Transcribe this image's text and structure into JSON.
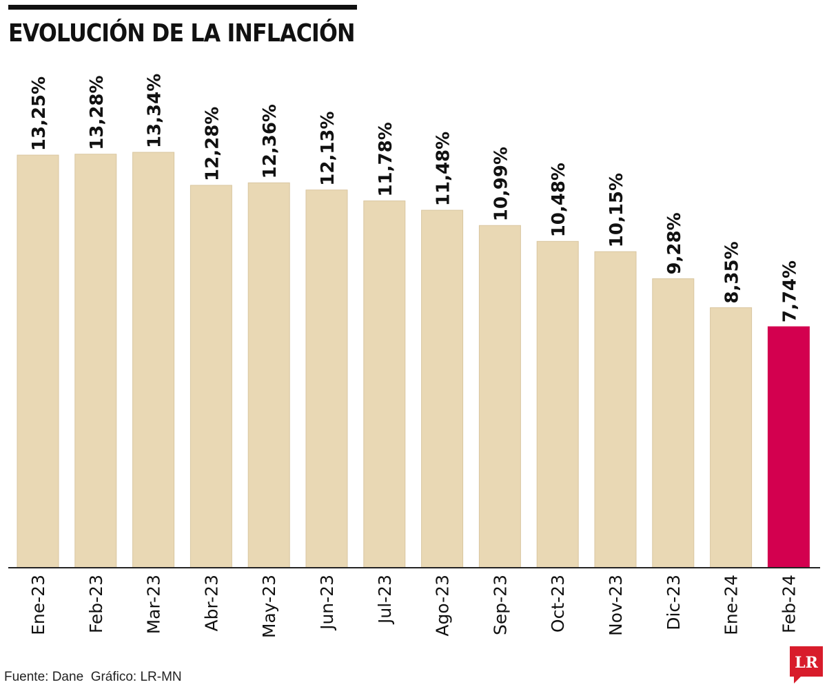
{
  "title": "EVOLUCIÓN DE LA INFLACIÓN",
  "source": "Fuente: Dane  Gráfico: LR-MN",
  "logo": {
    "text": "LR",
    "color": "#d81c2b"
  },
  "colors": {
    "bar": "#e9d8b4",
    "highlight": "#d3004f",
    "axis": "#222222",
    "text": "#111111"
  },
  "chart_data": {
    "type": "bar",
    "title": "EVOLUCIÓN DE LA INFLACIÓN",
    "xlabel": "",
    "ylabel": "",
    "categories": [
      "Ene-23",
      "Feb-23",
      "Mar-23",
      "Abr-23",
      "May-23",
      "Jun-23",
      "Jul-23",
      "Ago-23",
      "Sep-23",
      "Oct-23",
      "Nov-23",
      "Dic-23",
      "Ene-24",
      "Feb-24"
    ],
    "values": [
      13.25,
      13.28,
      13.34,
      12.28,
      12.36,
      12.13,
      11.78,
      11.48,
      10.99,
      10.48,
      10.15,
      9.28,
      8.35,
      7.74
    ],
    "labels": [
      "13,25%",
      "13,28%",
      "13,34%",
      "12,28%",
      "12,36%",
      "12,13%",
      "11,78%",
      "11,48%",
      "10,99%",
      "10,48%",
      "10,15%",
      "9,28%",
      "8,35%",
      "7,74%"
    ],
    "highlight_index": 13,
    "grid": false,
    "legend": "none"
  }
}
